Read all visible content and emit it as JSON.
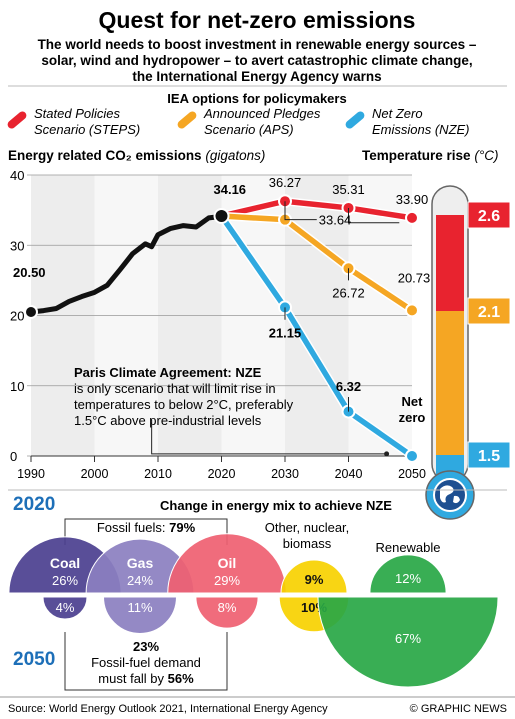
{
  "header": {
    "title": "Quest for net-zero emissions",
    "subtitle_lines": [
      "The world needs to boost investment in renewable energy sources –",
      "solar, wind and hydropower – to avert catastrophic climate change,",
      "the International Energy Agency warns"
    ]
  },
  "legend": {
    "title": "IEA options for policymakers",
    "items": [
      {
        "line1": "Stated Policies",
        "line2": "Scenario (STEPS)",
        "color": "#e8232f"
      },
      {
        "line1": "Announced Pledges",
        "line2": "Scenario (APS)",
        "color": "#f5a623"
      },
      {
        "line1": "Net Zero",
        "line2": "Emissions (NZE)",
        "color": "#2fa9e0"
      }
    ]
  },
  "chart_data": {
    "type": "line",
    "title": "Energy related CO₂ emissions",
    "title_unit": "(gigatons)",
    "ylim": [
      0,
      40
    ],
    "yticks": [
      0,
      10,
      20,
      30,
      40
    ],
    "xlim": [
      1990,
      2050
    ],
    "xticks": [
      1990,
      2000,
      2010,
      2020,
      2030,
      2040,
      2050
    ],
    "historical": {
      "name": "",
      "color": "#111111",
      "x": [
        1990,
        1992,
        1994,
        1996,
        1998,
        2000,
        2002,
        2004,
        2006,
        2008,
        2009,
        2010,
        2012,
        2014,
        2016,
        2018,
        2019,
        2020
      ],
      "y": [
        20.5,
        20.7,
        21.0,
        22.0,
        22.7,
        23.3,
        24.3,
        26.5,
        28.8,
        30.2,
        29.8,
        31.5,
        32.4,
        32.8,
        32.6,
        33.9,
        34.0,
        34.16
      ]
    },
    "series": [
      {
        "name": "STEPS",
        "color": "#e8232f",
        "x": [
          2020,
          2030,
          2040,
          2050
        ],
        "y": [
          34.16,
          36.27,
          35.31,
          33.9
        ]
      },
      {
        "name": "APS",
        "color": "#f5a623",
        "x": [
          2020,
          2030,
          2040,
          2050
        ],
        "y": [
          34.16,
          33.64,
          26.72,
          20.73
        ]
      },
      {
        "name": "NZE",
        "color": "#2fa9e0",
        "x": [
          2020,
          2030,
          2040,
          2050
        ],
        "y": [
          34.16,
          21.15,
          6.32,
          0
        ]
      }
    ],
    "labels": {
      "start": "20.50",
      "peak": "34.16",
      "steps_2030": "36.27",
      "steps_2040": "35.31",
      "steps_2050": "33.90",
      "aps_2030": "33.64",
      "aps_2040": "26.72",
      "aps_2050": "20.73",
      "nze_2030": "21.15",
      "nze_2040": "6.32",
      "net_zero_1": "Net",
      "net_zero_2": "zero"
    },
    "annotation": {
      "lines": [
        "Paris Climate Agreement: NZE",
        "is only scenario that will limit rise in",
        "temperatures to below 2°C, preferably",
        "1.5°C above pre-industrial levels"
      ]
    }
  },
  "thermometer": {
    "title": "Temperature rise",
    "unit": "(°C)",
    "levels": [
      {
        "label": "2.6",
        "color": "#e8232f"
      },
      {
        "label": "2.1",
        "color": "#f5a623"
      },
      {
        "label": "1.5",
        "color": "#2fa9e0"
      }
    ]
  },
  "energy_mix": {
    "title": "Change in energy mix to achieve NZE",
    "year_from": "2020",
    "year_to": "2050",
    "fossil_label": "Fossil fuels: ",
    "fossil_value": "79%",
    "other_label": "Other, nuclear,",
    "other_label2": "biomass",
    "renewable_label": "Renewable",
    "fuels": [
      {
        "name": "Coal",
        "v2020": 26,
        "v2050": 4,
        "l2020": "26%",
        "l2050": "4%",
        "color": "#4b3f8f"
      },
      {
        "name": "Gas",
        "v2020": 24,
        "v2050": 11,
        "l2020": "24%",
        "l2050": "11%",
        "color": "#8b7fc0"
      },
      {
        "name": "Oil",
        "v2020": 29,
        "v2050": 8,
        "l2020": "29%",
        "l2050": "8%",
        "color": "#ef5f71"
      },
      {
        "name": "Other",
        "v2020": 9,
        "v2050": 10,
        "l2020": "9%",
        "l2050": "10%",
        "color": "#f7d100"
      },
      {
        "name": "Renewable",
        "v2020": 12,
        "v2050": 67,
        "l2020": "12%",
        "l2050": "67%",
        "color": "#28a745"
      }
    ],
    "fossil_2050": "23%",
    "demand_line1": "Fossil-fuel demand",
    "demand_line2": "must fall by ",
    "demand_value": "56%"
  },
  "footer": {
    "source": "Source: World Energy Outlook 2021, International Energy Agency",
    "credit": "© GRAPHIC NEWS"
  }
}
